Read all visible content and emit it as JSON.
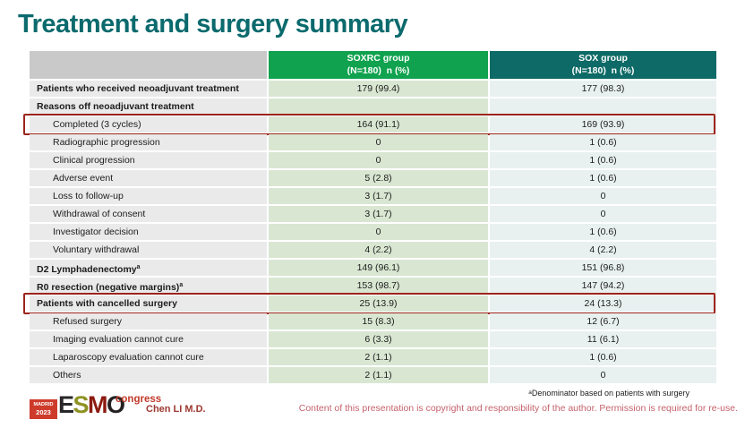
{
  "slide": {
    "title": "Treatment and surgery summary"
  },
  "colors": {
    "title-teal": "#0b6a6d",
    "hdr-gray": "#c9c9c9",
    "hdr-green": "#10a24e",
    "hdr-teal": "#0d6a66",
    "row-gray": "#eaeaea",
    "cell-green": "#d9e7d2",
    "cell-blue": "#e8f1ef",
    "highlight-red": "#9c241c"
  },
  "table": {
    "columns": [
      {
        "line1": "SOXRC group",
        "line2": "(N=180)  n (%)"
      },
      {
        "line1": "SOX group",
        "line2": "(N=180)  n (%)"
      }
    ],
    "rows": [
      {
        "label": "Patients who received neoadjuvant treatment",
        "bold": true,
        "indent": false,
        "soxrc": "179 (99.4)",
        "sox": "177 (98.3)",
        "highlight": false
      },
      {
        "label": "Reasons off neoadjuvant treatment",
        "bold": true,
        "indent": false,
        "soxrc": "",
        "sox": "",
        "highlight": false
      },
      {
        "label": "Completed (3 cycles)",
        "bold": false,
        "indent": true,
        "soxrc": "164 (91.1)",
        "sox": "169 (93.9)",
        "highlight": true
      },
      {
        "label": "Radiographic progression",
        "bold": false,
        "indent": true,
        "soxrc": "0",
        "sox": "1 (0.6)",
        "highlight": false
      },
      {
        "label": "Clinical progression",
        "bold": false,
        "indent": true,
        "soxrc": "0",
        "sox": "1 (0.6)",
        "highlight": false
      },
      {
        "label": "Adverse event",
        "bold": false,
        "indent": true,
        "soxrc": "5 (2.8)",
        "sox": "1 (0.6)",
        "highlight": false
      },
      {
        "label": "Loss to follow-up",
        "bold": false,
        "indent": true,
        "soxrc": "3 (1.7)",
        "sox": "0",
        "highlight": false
      },
      {
        "label": "Withdrawal of consent",
        "bold": false,
        "indent": true,
        "soxrc": "3 (1.7)",
        "sox": "0",
        "highlight": false
      },
      {
        "label": "Investigator decision",
        "bold": false,
        "indent": true,
        "soxrc": "0",
        "sox": "1 (0.6)",
        "highlight": false
      },
      {
        "label": "Voluntary withdrawal",
        "bold": false,
        "indent": true,
        "soxrc": "4 (2.2)",
        "sox": "4 (2.2)",
        "highlight": false
      },
      {
        "label": "D2 Lymphadenectomy",
        "sup": "a",
        "bold": true,
        "indent": false,
        "soxrc": "149 (96.1)",
        "sox": "151 (96.8)",
        "highlight": false
      },
      {
        "label": "R0 resection (negative margins)",
        "sup": "a",
        "bold": true,
        "indent": false,
        "soxrc": "153 (98.7)",
        "sox": "147 (94.2)",
        "highlight": false
      },
      {
        "label": "Patients with cancelled surgery",
        "bold": true,
        "indent": false,
        "soxrc": "25 (13.9)",
        "sox": "24 (13.3)",
        "highlight": true
      },
      {
        "label": "Refused surgery",
        "bold": false,
        "indent": true,
        "soxrc": "15 (8.3)",
        "sox": "12 (6.7)",
        "highlight": false
      },
      {
        "label": "Imaging evaluation cannot cure",
        "bold": false,
        "indent": true,
        "soxrc": "6 (3.3)",
        "sox": "11 (6.1)",
        "highlight": false
      },
      {
        "label": "Laparoscopy evaluation cannot cure",
        "bold": false,
        "indent": true,
        "soxrc": "2 (1.1)",
        "sox": "1 (0.6)",
        "highlight": false
      },
      {
        "label": "Others",
        "bold": false,
        "indent": true,
        "soxrc": "2 (1.1)",
        "sox": "0",
        "highlight": false
      }
    ]
  },
  "footer": {
    "logo": {
      "city": "MADRID",
      "year": "2023",
      "esmo": [
        "E",
        "S",
        "M",
        "O"
      ],
      "congress": "congress"
    },
    "author": "Chen LI M.D.",
    "footnote_sup": "a",
    "footnote_text": "Denominator based on patients with surgery",
    "copyright": "Content of this presentation is copyright and responsibility of the author. Permission is required for re-use."
  }
}
